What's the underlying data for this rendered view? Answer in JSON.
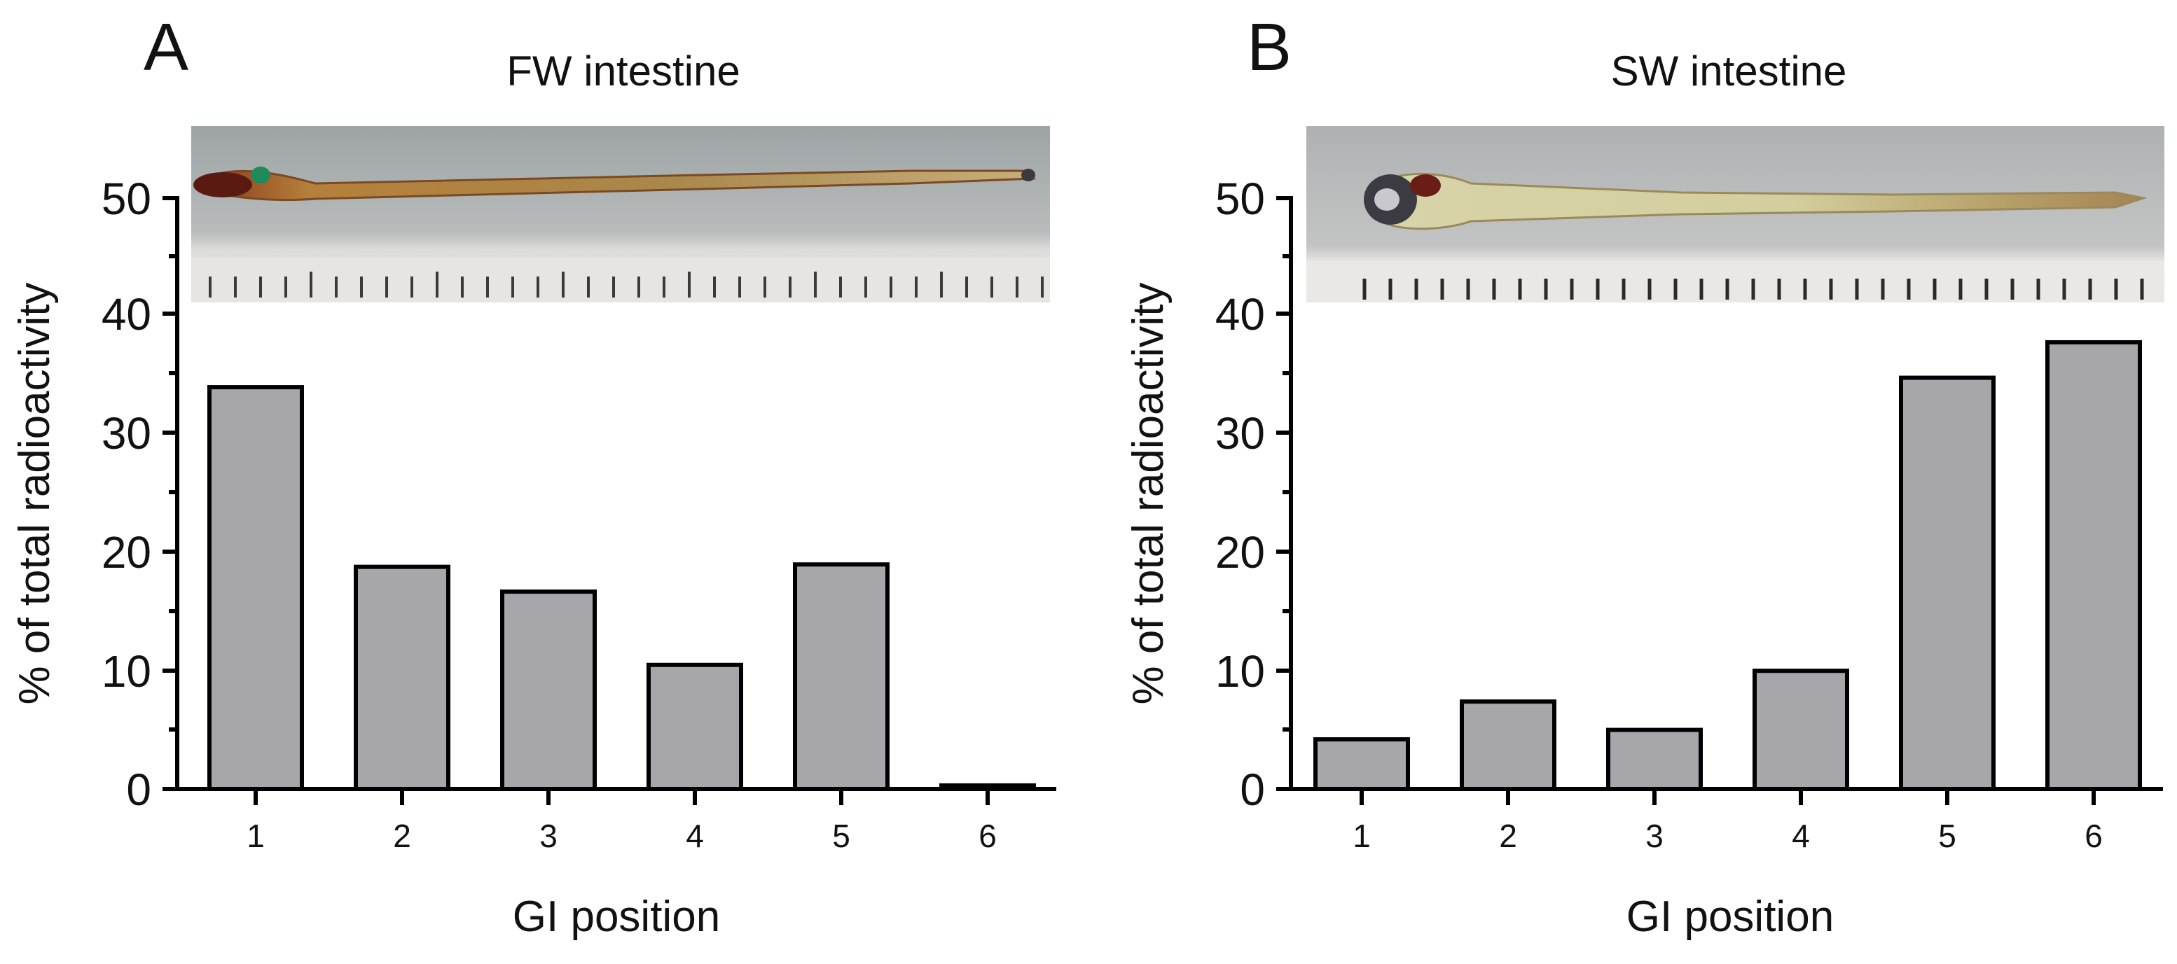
{
  "chart_data": [
    {
      "type": "bar",
      "panel_label": "A",
      "title": "FW intestine",
      "xlabel": "GI position",
      "ylabel": "% of total radioactivity",
      "categories": [
        "1",
        "2",
        "3",
        "4",
        "5",
        "6"
      ],
      "values": [
        34,
        18.8,
        16.7,
        10.5,
        19,
        0.3
      ],
      "ylim": [
        0,
        50
      ],
      "yticks": [
        0,
        10,
        20,
        30,
        40,
        50
      ],
      "yticks_labels": [
        "0",
        "10",
        "20",
        "30",
        "40",
        "50"
      ],
      "grid": false,
      "colors": {
        "bar_fill": "#a7a6ab",
        "bar_stroke": "#000000"
      },
      "inset_image": "photo of dissected freshwater fish intestine laid beside a ruler"
    },
    {
      "type": "bar",
      "panel_label": "B",
      "title": "SW intestine",
      "xlabel": "GI position",
      "ylabel": "% of total radioactivity",
      "categories": [
        "1",
        "2",
        "3",
        "4",
        "5",
        "6"
      ],
      "values": [
        4.2,
        7.4,
        5,
        10,
        34.8,
        37.8
      ],
      "ylim": [
        0,
        50
      ],
      "yticks": [
        0,
        10,
        20,
        30,
        40,
        50
      ],
      "yticks_labels": [
        "0",
        "10",
        "20",
        "30",
        "40",
        "50"
      ],
      "grid": false,
      "colors": {
        "bar_fill": "#a7a6ab",
        "bar_stroke": "#000000"
      },
      "inset_image": "photo of dissected seawater fish intestine laid beside a ruler"
    }
  ]
}
